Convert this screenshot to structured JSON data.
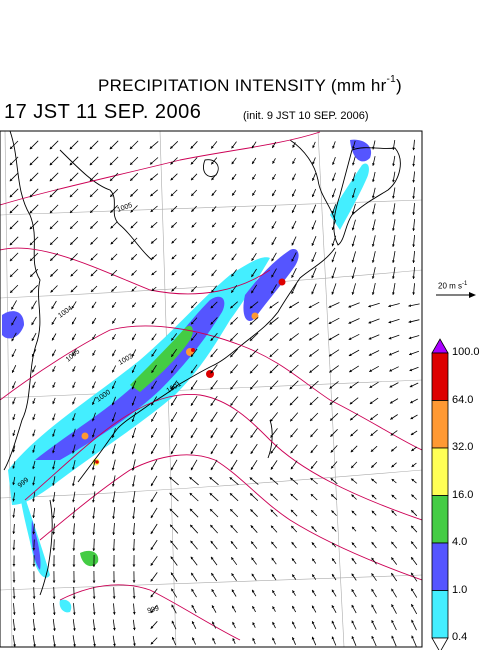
{
  "header": {
    "title_main": "PRECIPITATION INTENSITY (mm hr",
    "title_exp": "-1",
    "title_close": ")",
    "valid_time": "17 JST 11 SEP. 2006",
    "init_time": "(init. 9 JST 10 SEP. 2006)"
  },
  "wind_reference": {
    "label": "20 m s",
    "exp": "-1"
  },
  "colorbar": {
    "labels": [
      "100.0",
      "64.0",
      "32.0",
      "16.0",
      "4.0",
      "1.0",
      "0.4"
    ],
    "colors": [
      "#dd0000",
      "#ff9933",
      "#ffff55",
      "#44cc44",
      "#5555ff",
      "#44eeff"
    ],
    "over_color": "#aa00ff",
    "under_color": "#ffffff"
  },
  "isobars": {
    "labels": [
      "1005",
      "1004",
      "1005",
      "1003",
      "1001",
      "1000",
      "999",
      "999"
    ],
    "color": "#cc0055"
  },
  "map": {
    "land_color": "#000000",
    "grid_color": "#999999",
    "wind_color": "#000000"
  }
}
